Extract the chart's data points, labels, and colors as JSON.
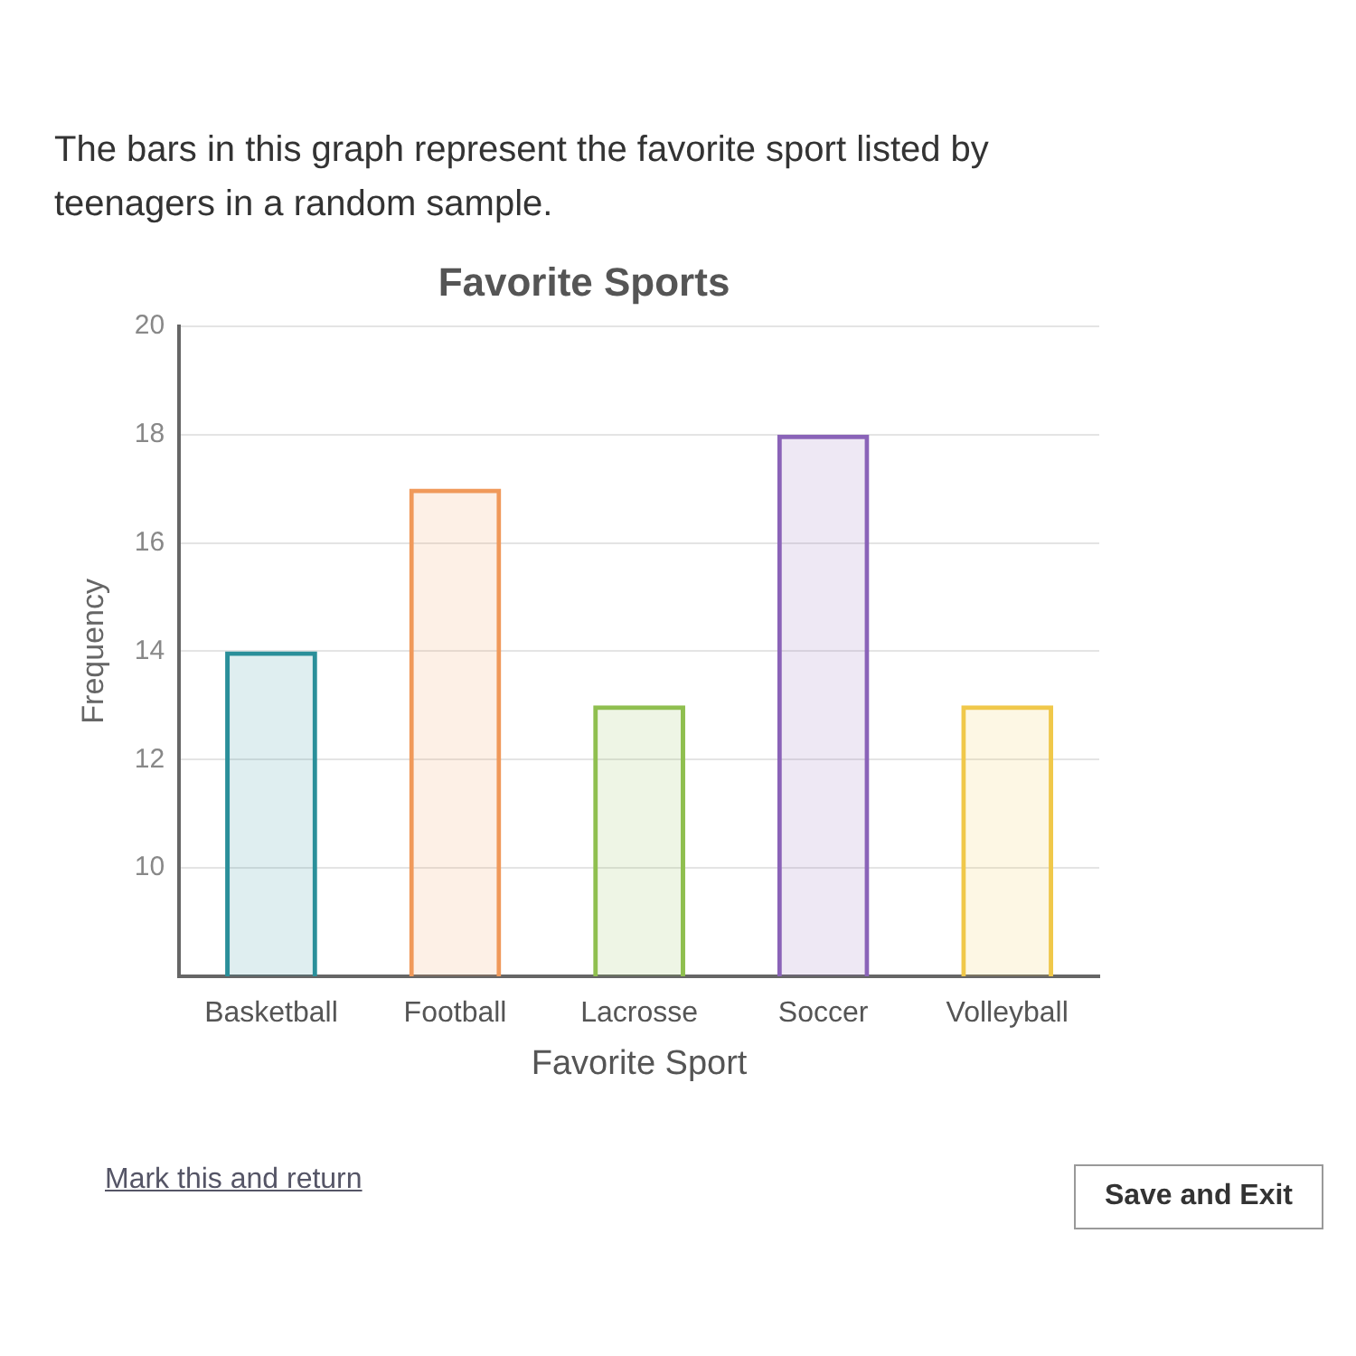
{
  "chart_data": {
    "type": "bar",
    "title": "Favorite Sports",
    "xlabel": "Favorite Sport",
    "ylabel": "Frequency",
    "categories": [
      "Basketball",
      "Football",
      "Lacrosse",
      "Soccer",
      "Volleyball"
    ],
    "values": [
      14,
      17,
      13,
      18,
      13
    ],
    "colors": [
      "#2a8f9a",
      "#f0995a",
      "#8fbf4f",
      "#8a63b8",
      "#f0c84a"
    ],
    "ylim": [
      8,
      20
    ],
    "yticks": [
      10,
      12,
      14,
      16,
      18,
      20
    ],
    "grid": "y",
    "legend": false,
    "annotations": [
      "The bars in this graph represent the favorite sport listed by teenagers in a random sample.",
      "Mark this and return",
      "Save and Exit"
    ]
  }
}
